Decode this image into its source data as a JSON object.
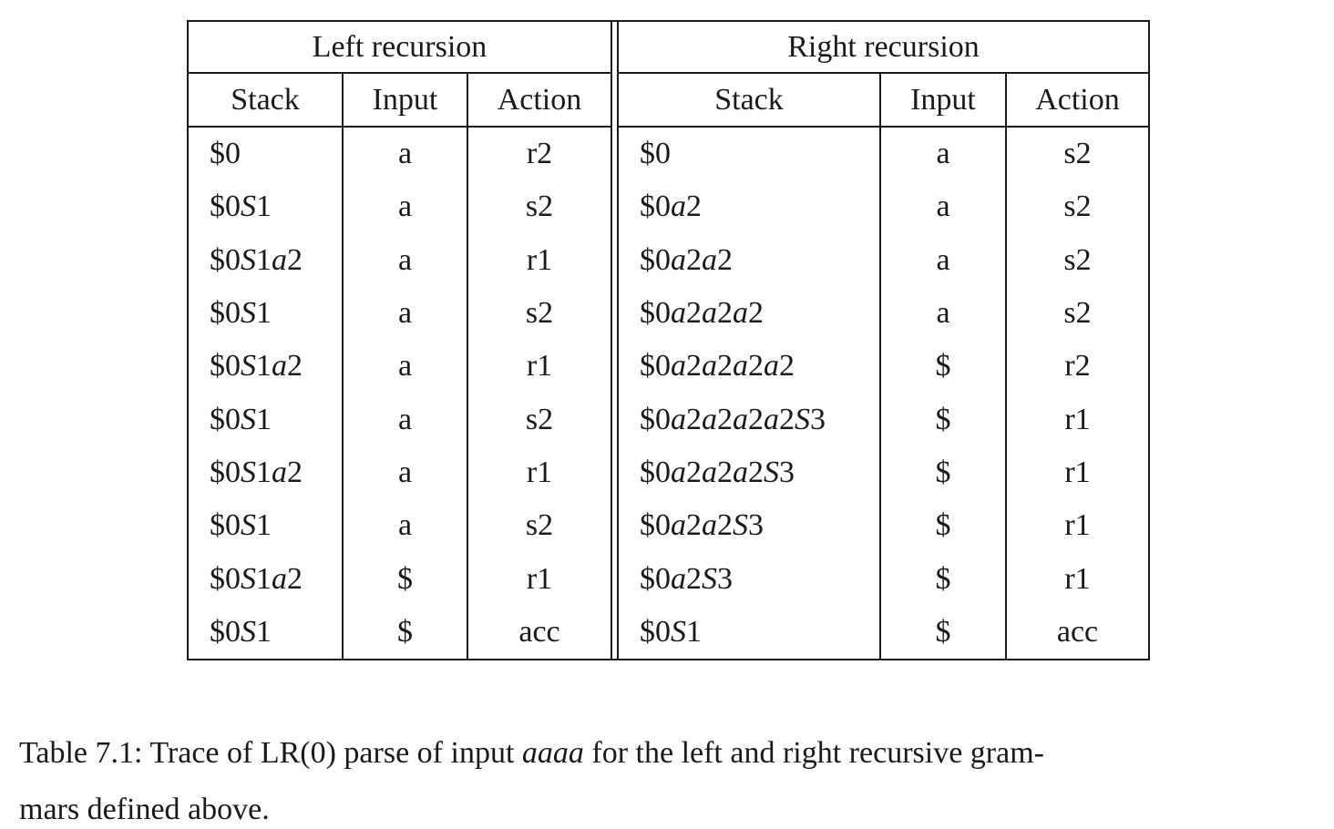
{
  "colors": {
    "background": "#ffffff",
    "text": "#1a1a1a",
    "border": "#1a1a1a"
  },
  "table": {
    "left": {
      "title": "Left recursion",
      "columns": {
        "stack": "Stack",
        "input": "Input",
        "action": "Action"
      },
      "rows": [
        {
          "stack": "$0",
          "input": "a",
          "action": "r2"
        },
        {
          "stack": "$0S1",
          "input": "a",
          "action": "s2"
        },
        {
          "stack": "$0S1a2",
          "input": "a",
          "action": "r1"
        },
        {
          "stack": "$0S1",
          "input": "a",
          "action": "s2"
        },
        {
          "stack": "$0S1a2",
          "input": "a",
          "action": "r1"
        },
        {
          "stack": "$0S1",
          "input": "a",
          "action": "s2"
        },
        {
          "stack": "$0S1a2",
          "input": "a",
          "action": "r1"
        },
        {
          "stack": "$0S1",
          "input": "a",
          "action": "s2"
        },
        {
          "stack": "$0S1a2",
          "input": "$",
          "action": "r1"
        },
        {
          "stack": "$0S1",
          "input": "$",
          "action": "acc"
        }
      ]
    },
    "right": {
      "title": "Right recursion",
      "columns": {
        "stack": "Stack",
        "input": "Input",
        "action": "Action"
      },
      "rows": [
        {
          "stack": "$0",
          "input": "a",
          "action": "s2"
        },
        {
          "stack": "$0a2",
          "input": "a",
          "action": "s2"
        },
        {
          "stack": "$0a2a2",
          "input": "a",
          "action": "s2"
        },
        {
          "stack": "$0a2a2a2",
          "input": "a",
          "action": "s2"
        },
        {
          "stack": "$0a2a2a2a2",
          "input": "$",
          "action": "r2"
        },
        {
          "stack": "$0a2a2a2a2S3",
          "input": "$",
          "action": "r1"
        },
        {
          "stack": "$0a2a2a2S3",
          "input": "$",
          "action": "r1"
        },
        {
          "stack": "$0a2a2S3",
          "input": "$",
          "action": "r1"
        },
        {
          "stack": "$0a2S3",
          "input": "$",
          "action": "r1"
        },
        {
          "stack": "$0S1",
          "input": "$",
          "action": "acc"
        }
      ]
    }
  },
  "caption": {
    "label": "Table 7.1:",
    "lines": [
      [
        {
          "text": "Table 7.1:  Trace of LR(0) parse of input "
        },
        {
          "text": "aaaa",
          "italic": true
        },
        {
          "text": " for the left and right recursive gram-"
        }
      ],
      [
        {
          "text": "mars defined above."
        }
      ]
    ]
  }
}
